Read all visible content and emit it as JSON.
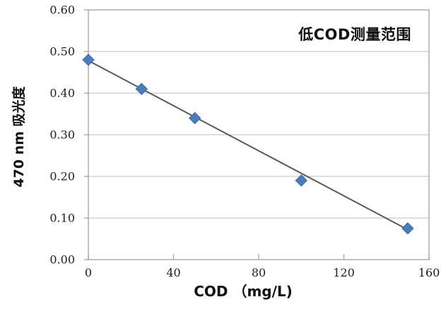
{
  "chart_data": {
    "type": "scatter",
    "title": "",
    "annotation": "低COD测量范围",
    "xlabel": "COD （mg/L)",
    "ylabel": "470 nm 吸光度",
    "xlim": [
      0,
      160
    ],
    "ylim": [
      0,
      0.6
    ],
    "xticks": [
      0,
      40,
      80,
      120,
      160
    ],
    "ytick_labels": [
      "0.00",
      "0.10",
      "0.20",
      "0.30",
      "0.40",
      "0.50",
      "0.60"
    ],
    "grid": "horizontal",
    "legend": "none",
    "marker": "diamond",
    "points": {
      "x": [
        0,
        25,
        50,
        100,
        150
      ],
      "y": [
        0.48,
        0.41,
        0.34,
        0.19,
        0.075
      ]
    },
    "trendline": {
      "x1": 0,
      "y1": 0.478,
      "x2": 150,
      "y2": 0.072
    },
    "colors": {
      "marker_fill": "#4a7ebb",
      "marker_border": "#3c67a5",
      "trendline": "#595959",
      "gridline": "#bdbdbd",
      "axis": "#a0a0a0",
      "text": "#1f1f1f"
    }
  }
}
